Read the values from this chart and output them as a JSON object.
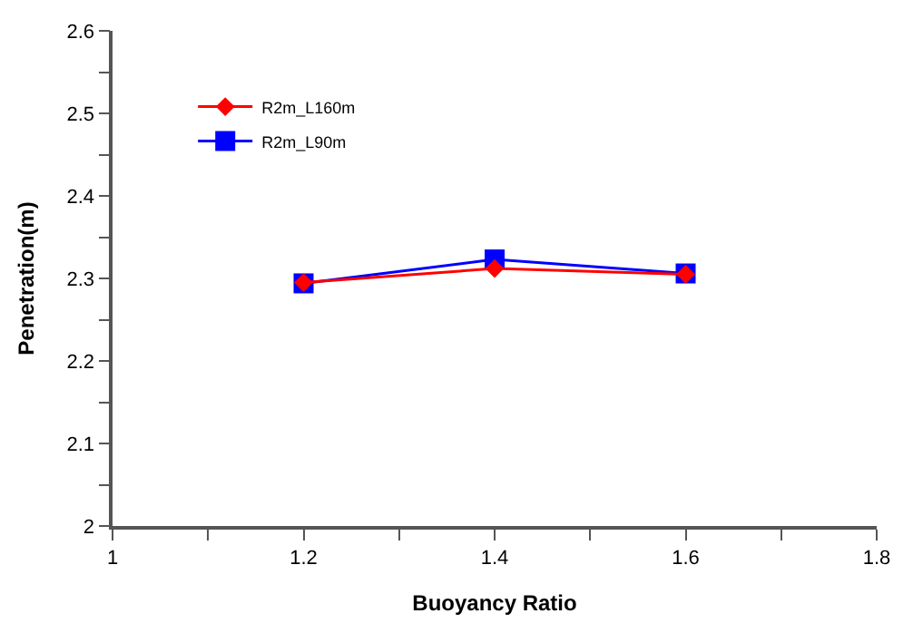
{
  "chart_data": {
    "type": "line",
    "xlabel": "Buoyancy Ratio",
    "ylabel": "Penetration(m)",
    "x": [
      1.2,
      1.4,
      1.6
    ],
    "series": [
      {
        "name": "R2m_L160m",
        "color": "#ff0000",
        "values": [
          2.295,
          2.312,
          2.305
        ],
        "marker": "diamond"
      },
      {
        "name": "R2m_L90m",
        "color": "#0000ff",
        "values": [
          2.294,
          2.323,
          2.306
        ],
        "marker": "square"
      }
    ],
    "xlim": [
      1,
      1.8
    ],
    "xticks": [
      1,
      {
        "value": 1.1,
        "label": null
      },
      1.2,
      {
        "value": 1.3,
        "label": null
      },
      1.4,
      {
        "value": 1.5,
        "label": null
      },
      1.6,
      {
        "value": 1.7,
        "label": null
      },
      1.8
    ],
    "ylim": [
      2,
      2.6
    ],
    "yticks": [
      2,
      {
        "value": 2.05,
        "label": null
      },
      2.1,
      {
        "value": 2.15,
        "label": null
      },
      2.2,
      {
        "value": 2.25,
        "label": null
      },
      2.3,
      {
        "value": 2.35,
        "label": null
      },
      2.4,
      {
        "value": 2.45,
        "label": null
      },
      2.5,
      {
        "value": 2.55,
        "label": null
      },
      2.6
    ],
    "legend": "top left",
    "line_style": "solid"
  }
}
